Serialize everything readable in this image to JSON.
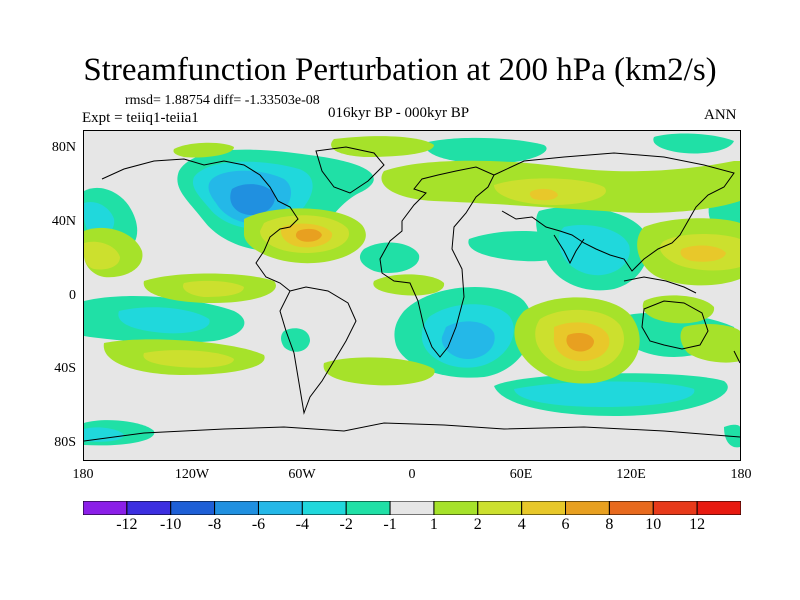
{
  "title": "Streamfunction Perturbation at 200 hPa (km2/s)",
  "stats": "rmsd= 1.88754 diff= -1.33503e-08",
  "experiment": "Expt = teiiq1-teiia1",
  "period": "016kyr BP - 000kyr BP",
  "season": "ANN",
  "map": {
    "projection": "cylindrical equidistant",
    "lat_ticks": [
      "80N",
      "40N",
      "0",
      "40S",
      "80S"
    ],
    "lon_ticks": [
      "180",
      "120W",
      "60W",
      "0",
      "60E",
      "120E",
      "180"
    ],
    "background_color": "#e6e6e6",
    "coastlines": true
  },
  "colorbar": {
    "labels": [
      "-12",
      "-10",
      "-8",
      "-6",
      "-4",
      "-2",
      "-1",
      "1",
      "2",
      "4",
      "6",
      "8",
      "10",
      "12"
    ],
    "colors": [
      "#8b1fe8",
      "#3c2ee0",
      "#1e5fd6",
      "#2090e0",
      "#24b8e8",
      "#20d8dc",
      "#20e0a6",
      "#e6e6e6",
      "#a6e22a",
      "#cce02e",
      "#e8c82a",
      "#e8a020",
      "#e86a1e",
      "#e83a1a",
      "#e81a10"
    ]
  }
}
